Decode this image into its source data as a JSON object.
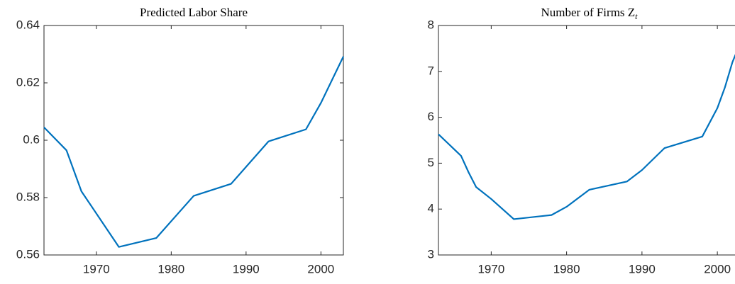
{
  "chart_data": [
    {
      "type": "line",
      "title": "Predicted Labor Share",
      "x": [
        1963,
        1966,
        1968,
        1973,
        1978,
        1983,
        1988,
        1993,
        1998,
        2000,
        2003
      ],
      "series": [
        {
          "color": "#0072bd",
          "values": [
            0.6045,
            0.5965,
            0.5822,
            0.5628,
            0.5659,
            0.5806,
            0.5848,
            0.5996,
            0.6038,
            0.613,
            0.6292
          ]
        }
      ],
      "xlim": [
        1963,
        2003
      ],
      "xticks": [
        1970,
        1980,
        1990,
        2000
      ],
      "ylim": [
        0.56,
        0.64
      ],
      "yticks": [
        0.56,
        0.58,
        0.6,
        0.62,
        0.64
      ]
    },
    {
      "type": "line",
      "title": "Number of Firms Z",
      "title_subscript": "t",
      "x": [
        1963,
        1966,
        1967,
        1968,
        1970,
        1973,
        1978,
        1980,
        1983,
        1988,
        1990,
        1993,
        1998,
        2000,
        2001,
        2002,
        2003
      ],
      "series": [
        {
          "color": "#0072bd",
          "values": [
            5.63,
            5.16,
            4.8,
            4.48,
            4.22,
            3.78,
            3.87,
            4.05,
            4.42,
            4.6,
            4.85,
            5.33,
            5.58,
            6.2,
            6.65,
            7.2,
            7.6
          ]
        }
      ],
      "xlim": [
        1963,
        2003
      ],
      "xticks": [
        1970,
        1980,
        1990,
        2000
      ],
      "ylim": [
        3,
        8
      ],
      "yticks": [
        3,
        4,
        5,
        6,
        7,
        8
      ]
    }
  ]
}
